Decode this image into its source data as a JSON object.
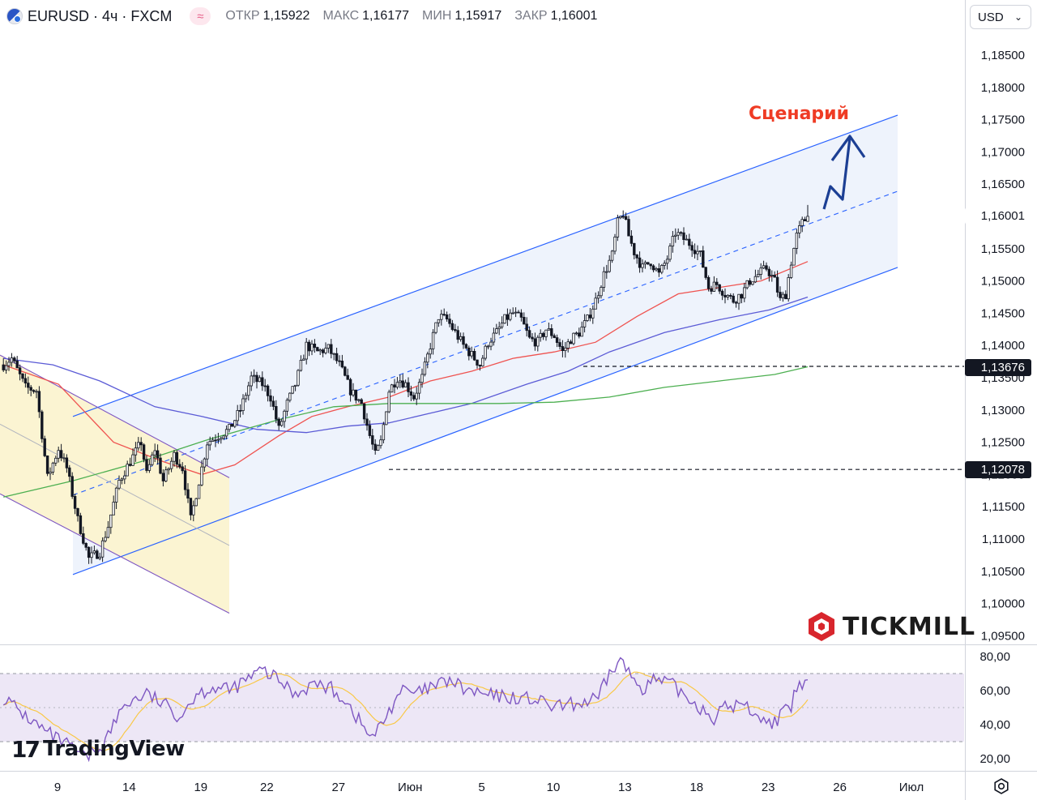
{
  "header": {
    "symbol": "EURUSD · 4ч · FXCM",
    "flag_icon": "eu-us-flag-icon",
    "indicator_icon": "wave-icon",
    "indicator_glyph": "≈",
    "open_label": "ОТКР",
    "open_value": "1,15922",
    "high_label": "МАКС",
    "high_value": "1,16177",
    "low_label": "МИН",
    "low_value": "1,15917",
    "close_label": "ЗАКР",
    "close_value": "1,16001",
    "currency": "USD",
    "currency_chevron": "⌄"
  },
  "colors": {
    "background": "#ffffff",
    "candle": "#131722",
    "channel_line": "#2962ff",
    "channel_fill": "#eef3fc",
    "down_channel_line": "#7e57c2",
    "down_channel_fill": "#fbf4d2",
    "ma_fast": "#ef5350",
    "ma_mid": "#5b5bd6",
    "ma_slow": "#4caf50",
    "scenario_arrow": "#1c3f94",
    "scenario_text": "#ef3b24",
    "rsi_line": "#7e57c2",
    "rsi_signal": "#f9c846",
    "rsi_band": "#ede7f6"
  },
  "annotations": {
    "scenario": "Сценарий",
    "level_high": "1,13676",
    "level_low": "1,12078"
  },
  "price_badge": "1,16001",
  "branding": {
    "tickmill": "TICKMILL",
    "tradingview": "TradingView",
    "tv_logo": "17"
  },
  "footer": {
    "settings_icon": "gear-icon"
  },
  "chart_data": {
    "type": "candlestick",
    "symbol": "EURUSD",
    "timeframe": "4ч",
    "ylim": [
      1.093,
      1.1895
    ],
    "y_ticks": [
      "1,18500",
      "1,18000",
      "1,17500",
      "1,17000",
      "1,16500",
      "1,16001",
      "1,15500",
      "1,15000",
      "1,14500",
      "1,14000",
      "1,13500",
      "1,13000",
      "1,12500",
      "1,12000",
      "1,11500",
      "1,11000",
      "1,10500",
      "1,10000",
      "1,09500"
    ],
    "y_tick_values": [
      1.185,
      1.18,
      1.175,
      1.17,
      1.165,
      1.16001,
      1.155,
      1.15,
      1.145,
      1.14,
      1.135,
      1.13,
      1.125,
      1.12,
      1.115,
      1.11,
      1.105,
      1.1,
      1.095
    ],
    "x_ticks": [
      "9",
      "14",
      "19",
      "22",
      "27",
      "Июн",
      "5",
      "10",
      "13",
      "18",
      "23",
      "26",
      "Июл"
    ],
    "x_tick_index": [
      22,
      48,
      74,
      98,
      124,
      150,
      176,
      202,
      228,
      254,
      280,
      306,
      332
    ],
    "bars_per_tick_span": 26,
    "first_bar_index": 2,
    "waypoints": [
      [
        0,
        1.137
      ],
      [
        3,
        1.138
      ],
      [
        8,
        1.1335
      ],
      [
        12,
        1.133
      ],
      [
        16,
        1.1195
      ],
      [
        20,
        1.124
      ],
      [
        23,
        1.121
      ],
      [
        27,
        1.113
      ],
      [
        31,
        1.107
      ],
      [
        35,
        1.108
      ],
      [
        38,
        1.112
      ],
      [
        42,
        1.119
      ],
      [
        46,
        1.122
      ],
      [
        50,
        1.125
      ],
      [
        52,
        1.12
      ],
      [
        55,
        1.124
      ],
      [
        58,
        1.119
      ],
      [
        62,
        1.123
      ],
      [
        65,
        1.121
      ],
      [
        68,
        1.113
      ],
      [
        71,
        1.119
      ],
      [
        74,
        1.125
      ],
      [
        78,
        1.126
      ],
      [
        82,
        1.127
      ],
      [
        86,
        1.13
      ],
      [
        90,
        1.135
      ],
      [
        94,
        1.134
      ],
      [
        97,
        1.132
      ],
      [
        100,
        1.127
      ],
      [
        103,
        1.131
      ],
      [
        106,
        1.134
      ],
      [
        110,
        1.14
      ],
      [
        114,
        1.139
      ],
      [
        118,
        1.1395
      ],
      [
        122,
        1.137
      ],
      [
        126,
        1.133
      ],
      [
        130,
        1.131
      ],
      [
        133,
        1.126
      ],
      [
        135,
        1.123
      ],
      [
        137,
        1.125
      ],
      [
        140,
        1.133
      ],
      [
        143,
        1.135
      ],
      [
        146,
        1.134
      ],
      [
        149,
        1.132
      ],
      [
        152,
        1.135
      ],
      [
        155,
        1.14
      ],
      [
        158,
        1.1445
      ],
      [
        161,
        1.144
      ],
      [
        164,
        1.142
      ],
      [
        167,
        1.14
      ],
      [
        170,
        1.1385
      ],
      [
        173,
        1.137
      ],
      [
        176,
        1.1405
      ],
      [
        179,
        1.142
      ],
      [
        182,
        1.144
      ],
      [
        185,
        1.145
      ],
      [
        188,
        1.144
      ],
      [
        191,
        1.141
      ],
      [
        194,
        1.1405
      ],
      [
        197,
        1.1425
      ],
      [
        200,
        1.1415
      ],
      [
        203,
        1.139
      ],
      [
        206,
        1.141
      ],
      [
        209,
        1.142
      ],
      [
        212,
        1.144
      ],
      [
        215,
        1.147
      ],
      [
        218,
        1.151
      ],
      [
        221,
        1.154
      ],
      [
        223,
        1.159
      ],
      [
        225,
        1.1605
      ],
      [
        227,
        1.157
      ],
      [
        229,
        1.1545
      ],
      [
        232,
        1.152
      ],
      [
        235,
        1.153
      ],
      [
        238,
        1.151
      ],
      [
        241,
        1.1535
      ],
      [
        244,
        1.1575
      ],
      [
        247,
        1.1565
      ],
      [
        250,
        1.1555
      ],
      [
        253,
        1.154
      ],
      [
        256,
        1.149
      ],
      [
        259,
        1.1495
      ],
      [
        262,
        1.148
      ],
      [
        265,
        1.147
      ],
      [
        268,
        1.148
      ],
      [
        271,
        1.15
      ],
      [
        274,
        1.151
      ],
      [
        277,
        1.152
      ],
      [
        280,
        1.15
      ],
      [
        282,
        1.147
      ],
      [
        284,
        1.148
      ],
      [
        286,
        1.153
      ],
      [
        288,
        1.157
      ],
      [
        290,
        1.159
      ],
      [
        292,
        1.16
      ]
    ],
    "last_candle": {
      "open": 1.15922,
      "high": 1.16177,
      "low": 1.15917,
      "close": 1.16001
    },
    "moving_averages": [
      {
        "color": "#ef5350",
        "points": [
          [
            0,
            1.137
          ],
          [
            20,
            1.134
          ],
          [
            40,
            1.125
          ],
          [
            58,
            1.122
          ],
          [
            72,
            1.12
          ],
          [
            84,
            1.1215
          ],
          [
            100,
            1.126
          ],
          [
            112,
            1.129
          ],
          [
            125,
            1.1305
          ],
          [
            140,
            1.132
          ],
          [
            155,
            1.1345
          ],
          [
            170,
            1.136
          ],
          [
            185,
            1.138
          ],
          [
            200,
            1.139
          ],
          [
            215,
            1.1405
          ],
          [
            230,
            1.1445
          ],
          [
            245,
            1.148
          ],
          [
            260,
            1.149
          ],
          [
            275,
            1.15
          ],
          [
            292,
            1.153
          ]
        ]
      },
      {
        "color": "#5b5bd6",
        "points": [
          [
            0,
            1.138
          ],
          [
            18,
            1.137
          ],
          [
            35,
            1.1345
          ],
          [
            55,
            1.1305
          ],
          [
            72,
            1.129
          ],
          [
            92,
            1.127
          ],
          [
            110,
            1.1265
          ],
          [
            125,
            1.1275
          ],
          [
            140,
            1.128
          ],
          [
            155,
            1.1295
          ],
          [
            170,
            1.131
          ],
          [
            190,
            1.134
          ],
          [
            205,
            1.136
          ],
          [
            220,
            1.139
          ],
          [
            240,
            1.142
          ],
          [
            260,
            1.144
          ],
          [
            278,
            1.1455
          ],
          [
            292,
            1.1475
          ]
        ]
      },
      {
        "color": "#4caf50",
        "points": [
          [
            0,
            1.1165
          ],
          [
            25,
            1.119
          ],
          [
            50,
            1.122
          ],
          [
            75,
            1.1255
          ],
          [
            100,
            1.1285
          ],
          [
            120,
            1.1305
          ],
          [
            140,
            1.131
          ],
          [
            160,
            1.131
          ],
          [
            180,
            1.131
          ],
          [
            200,
            1.1312
          ],
          [
            220,
            1.132
          ],
          [
            240,
            1.1335
          ],
          [
            260,
            1.1345
          ],
          [
            280,
            1.1355
          ],
          [
            292,
            1.1367
          ]
        ]
      }
    ],
    "levels": [
      1.13676,
      1.12078
    ],
    "rsi": {
      "ylim": [
        14,
        86
      ],
      "y_ticks": [
        "80,00",
        "60,00",
        "40,00",
        "20,00"
      ],
      "y_tick_values": [
        80,
        60,
        40,
        20
      ],
      "band": [
        70,
        30
      ],
      "middle": 50,
      "waypoints": [
        [
          0,
          56
        ],
        [
          8,
          45
        ],
        [
          16,
          35
        ],
        [
          24,
          27
        ],
        [
          30,
          20
        ],
        [
          36,
          28
        ],
        [
          44,
          52
        ],
        [
          52,
          58
        ],
        [
          58,
          52
        ],
        [
          64,
          45
        ],
        [
          70,
          58
        ],
        [
          76,
          62
        ],
        [
          82,
          60
        ],
        [
          88,
          66
        ],
        [
          94,
          72
        ],
        [
          100,
          66
        ],
        [
          106,
          58
        ],
        [
          112,
          64
        ],
        [
          118,
          62
        ],
        [
          124,
          55
        ],
        [
          130,
          40
        ],
        [
          134,
          32
        ],
        [
          138,
          42
        ],
        [
          144,
          60
        ],
        [
          150,
          58
        ],
        [
          156,
          62
        ],
        [
          162,
          66
        ],
        [
          168,
          60
        ],
        [
          176,
          57
        ],
        [
          184,
          56
        ],
        [
          192,
          55
        ],
        [
          200,
          50
        ],
        [
          208,
          52
        ],
        [
          216,
          55
        ],
        [
          220,
          70
        ],
        [
          224,
          78
        ],
        [
          228,
          68
        ],
        [
          232,
          62
        ],
        [
          236,
          66
        ],
        [
          242,
          64
        ],
        [
          250,
          54
        ],
        [
          258,
          44
        ],
        [
          262,
          50
        ],
        [
          268,
          52
        ],
        [
          274,
          46
        ],
        [
          278,
          40
        ],
        [
          282,
          45
        ],
        [
          286,
          50
        ],
        [
          288,
          62
        ],
        [
          292,
          64
        ]
      ]
    }
  }
}
